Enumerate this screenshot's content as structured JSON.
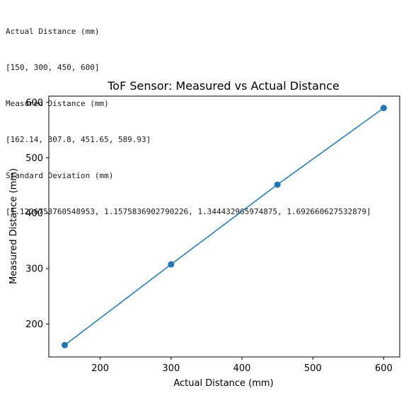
{
  "output": {
    "line1": "Actual Distance (mm)",
    "line2": "[150, 300, 450, 600]",
    "line3": "Measured Distance (mm)",
    "line4": "[162.14, 307.8, 451.65, 589.93]",
    "line5": "Standard Deviation (mm)",
    "line6": "[1.1226753760548953, 1.1575836902790226, 1.344432965974875, 1.692660627532879]"
  },
  "chart_data": {
    "type": "line",
    "title": "ToF Sensor: Measured vs Actual Distance",
    "xlabel": "Actual Distance (mm)",
    "ylabel": "Measured Distance (mm)",
    "x": [
      150,
      300,
      450,
      600
    ],
    "series": [
      {
        "values": [
          162.14,
          307.8,
          451.65,
          589.93
        ]
      }
    ],
    "xticks": [
      200,
      300,
      400,
      500,
      600
    ],
    "yticks": [
      200,
      300,
      400,
      500,
      600
    ],
    "xlim": [
      127.5,
      622.5
    ],
    "ylim": [
      140.75,
      611.32
    ],
    "grid": false,
    "markers": true,
    "line_color": "#1f77b4"
  }
}
